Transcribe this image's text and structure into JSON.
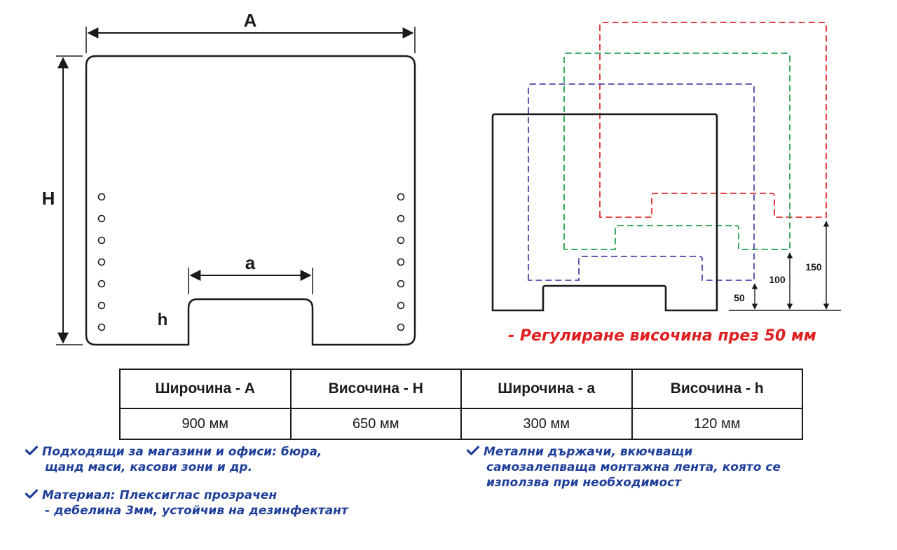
{
  "diagram": {
    "label_A": "A",
    "label_H": "H",
    "label_a": "a",
    "label_h": "h",
    "offset_50": "50",
    "offset_100": "100",
    "offset_150": "150",
    "adjust_note": "- Регулиране височина през 50 мм",
    "colors": {
      "line": "#1a1a1a",
      "dash_red": "#e03030",
      "dash_green": "#20a050",
      "dash_blue": "#4a4aa8",
      "note_red": "#e02020",
      "bullet_blue": "#1f3f99"
    }
  },
  "table": {
    "headers": [
      "Широчина - A",
      "Височина - H",
      "Широчина - a",
      "Височина - h"
    ],
    "values": [
      "900 мм",
      "650 мм",
      "300 мм",
      "120 мм"
    ]
  },
  "features": [
    {
      "icon": "check-icon",
      "lines": [
        "Подходящи за магазини и офиси: бюра,",
        "щанд маси, касови зони и др."
      ]
    },
    {
      "icon": "check-icon",
      "lines": [
        "Материал: Плексиглас прозрачен",
        "- дебелина 3мм, устойчив на дезинфектант"
      ]
    },
    {
      "icon": "check-icon",
      "lines": [
        "Метални държачи, вкючващи",
        "самозалепваща монтажна лента, която се",
        "използва при необходимост"
      ]
    }
  ]
}
